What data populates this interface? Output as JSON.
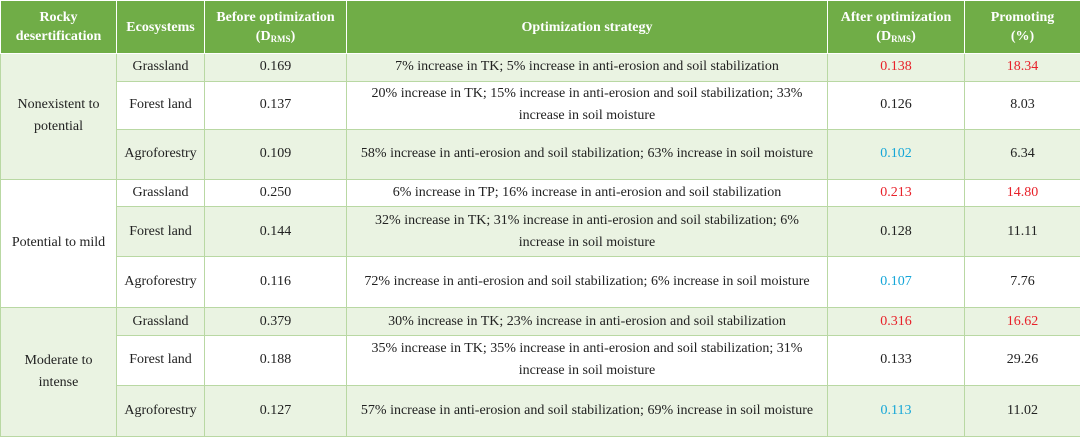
{
  "colors": {
    "header_bg": "#70ad47",
    "shade_bg": "#eaf3e2",
    "red_highlight": "#e8212a",
    "blue_highlight": "#14a6d8"
  },
  "headers": {
    "rocky": "Rocky desertification",
    "ecosystems": "Ecosystems",
    "before_main": "Before optimization",
    "before_sub_d": "D",
    "before_sub_rms": "RMS",
    "strategy": "Optimization strategy",
    "after_main": "After optimization",
    "after_sub_d": "D",
    "after_sub_rms": "RMS",
    "promoting_main": "Promoting",
    "promoting_unit": "(%)"
  },
  "groups": [
    {
      "label": "Nonexistent to potential",
      "rows": [
        {
          "eco": "Grassland",
          "before": "0.169",
          "strategy": "7% increase in TK; 5% increase in anti-erosion and soil stabilization",
          "after": "0.138",
          "after_color": "red",
          "promo": "18.34",
          "promo_color": "red"
        },
        {
          "eco": "Forest land",
          "before": "0.137",
          "strategy": "20% increase in TK; 15% increase in anti-erosion and soil stabilization; 33% increase in soil moisture",
          "after": "0.126",
          "after_color": "",
          "promo": "8.03",
          "promo_color": ""
        },
        {
          "eco": "Agroforestry",
          "before": "0.109",
          "strategy": "58% increase in anti-erosion and soil stabilization; 63% increase in soil moisture",
          "after": "0.102",
          "after_color": "cyan",
          "promo": "6.34",
          "promo_color": ""
        }
      ]
    },
    {
      "label": "Potential to mild",
      "rows": [
        {
          "eco": "Grassland",
          "before": "0.250",
          "strategy": "6% increase in TP; 16% increase in anti-erosion and soil stabilization",
          "after": "0.213",
          "after_color": "red",
          "promo": "14.80",
          "promo_color": "red"
        },
        {
          "eco": "Forest land",
          "before": "0.144",
          "strategy": "32% increase in TK; 31% increase in anti-erosion and soil stabilization; 6% increase in soil moisture",
          "after": "0.128",
          "after_color": "",
          "promo": "11.11",
          "promo_color": ""
        },
        {
          "eco": "Agroforestry",
          "before": "0.116",
          "strategy": "72% increase in anti-erosion and soil stabilization; 6% increase in soil moisture",
          "after": "0.107",
          "after_color": "cyan",
          "promo": "7.76",
          "promo_color": ""
        }
      ]
    },
    {
      "label": "Moderate to intense",
      "rows": [
        {
          "eco": "Grassland",
          "before": "0.379",
          "strategy": "30% increase in TK; 23% increase in anti-erosion and soil stabilization",
          "after": "0.316",
          "after_color": "red",
          "promo": "16.62",
          "promo_color": "red"
        },
        {
          "eco": "Forest land",
          "before": "0.188",
          "strategy": "35% increase in TK; 35% increase in anti-erosion and soil stabilization; 31% increase in soil moisture",
          "after": "0.133",
          "after_color": "",
          "promo": "29.26",
          "promo_color": ""
        },
        {
          "eco": "Agroforestry",
          "before": "0.127",
          "strategy": "57% increase in anti-erosion and soil stabilization; 69% increase in soil moisture",
          "after": "0.113",
          "after_color": "cyan",
          "promo": "11.02",
          "promo_color": ""
        }
      ]
    }
  ]
}
